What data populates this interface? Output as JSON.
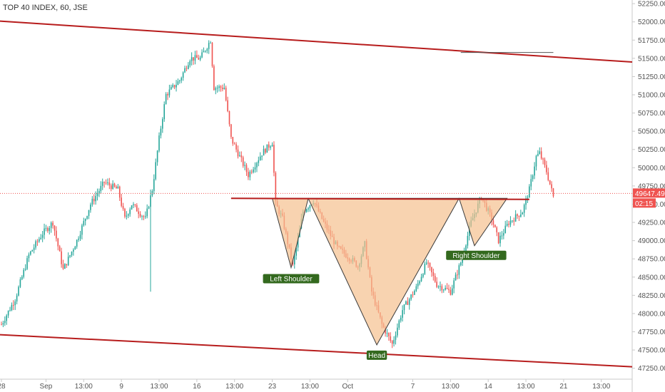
{
  "header": {
    "title": "TOP 40 INDEX, 60, JSE"
  },
  "colors": {
    "up": "#26a69a",
    "down": "#ef5350",
    "trendline": "#b71c1c",
    "pattern_fill": "#f5c08f",
    "label_bg": "#33691e",
    "last_price_bg": "#ef5350",
    "axis": "#555555"
  },
  "chart_data": {
    "type": "candlestick",
    "ylim": [
      47100,
      52300
    ],
    "y_ticks": [
      47250,
      47500,
      47750,
      48000,
      48250,
      48500,
      48750,
      49000,
      49250,
      49500,
      49750,
      50000,
      50250,
      50500,
      50750,
      51000,
      51250,
      51500,
      51750,
      52000,
      52250
    ],
    "y_tick_labels": [
      "47250.00",
      "47500.00",
      "47750.00",
      "48000.00",
      "48250.00",
      "48500.00",
      "48750.00",
      "49000.00",
      "49250.00",
      "49500.00",
      "49750.00",
      "50000.00",
      "50250.00",
      "50500.00",
      "50750.00",
      "51000.00",
      "51250.00",
      "51500.00",
      "51750.00",
      "52000.00",
      "52250.00"
    ],
    "x_ticks": [
      {
        "label": "28",
        "i": 0
      },
      {
        "label": "Sep",
        "i": 13
      },
      {
        "label": "13:00",
        "i": 24
      },
      {
        "label": "9",
        "i": 35
      },
      {
        "label": "13:00",
        "i": 46
      },
      {
        "label": "16",
        "i": 57
      },
      {
        "label": "13:00",
        "i": 68
      },
      {
        "label": "23",
        "i": 79
      },
      {
        "label": "13:00",
        "i": 90
      },
      {
        "label": "Oct",
        "i": 101
      },
      {
        "label": "7",
        "i": 120
      },
      {
        "label": "13:00",
        "i": 131
      },
      {
        "label": "14",
        "i": 142
      },
      {
        "label": "13:00",
        "i": 153
      },
      {
        "label": "21",
        "i": 164
      },
      {
        "label": "13:00",
        "i": 175
      }
    ],
    "x_range": [
      0,
      184
    ],
    "path_points": [
      [
        0,
        47850
      ],
      [
        4,
        48200
      ],
      [
        8,
        48800
      ],
      [
        12,
        49100
      ],
      [
        15,
        49250
      ],
      [
        18,
        48600
      ],
      [
        22,
        49000
      ],
      [
        26,
        49500
      ],
      [
        30,
        49800
      ],
      [
        34,
        49700
      ],
      [
        36,
        49300
      ],
      [
        38,
        49500
      ],
      [
        42,
        49300
      ],
      [
        44,
        49700
      ],
      [
        46,
        50400
      ],
      [
        48,
        51000
      ],
      [
        52,
        51200
      ],
      [
        55,
        51500
      ],
      [
        58,
        51500
      ],
      [
        61,
        51750
      ],
      [
        62,
        51100
      ],
      [
        65,
        51100
      ],
      [
        67,
        50400
      ],
      [
        70,
        50100
      ],
      [
        72,
        49900
      ],
      [
        76,
        50200
      ],
      [
        79,
        50350
      ],
      [
        80,
        49500
      ],
      [
        82,
        49300
      ],
      [
        85,
        48650
      ],
      [
        88,
        49400
      ],
      [
        91,
        49550
      ],
      [
        94,
        49250
      ],
      [
        98,
        48900
      ],
      [
        102,
        48750
      ],
      [
        104,
        48650
      ],
      [
        106,
        48950
      ],
      [
        108,
        48300
      ],
      [
        111,
        47850
      ],
      [
        114,
        47580
      ],
      [
        117,
        48050
      ],
      [
        121,
        48350
      ],
      [
        124,
        48700
      ],
      [
        127,
        48400
      ],
      [
        131,
        48300
      ],
      [
        134,
        48700
      ],
      [
        137,
        49250
      ],
      [
        140,
        49600
      ],
      [
        143,
        49300
      ],
      [
        145,
        49000
      ],
      [
        148,
        49250
      ],
      [
        152,
        49400
      ],
      [
        154,
        49700
      ],
      [
        156,
        50150
      ],
      [
        157,
        50200
      ],
      [
        159,
        49950
      ],
      [
        161,
        49600
      ]
    ],
    "last_price": 49647.49,
    "last_price_label": "49647.49",
    "countdown": "02:15",
    "annotations": [
      "Left Shoulder",
      "Head",
      "Right Shoulder"
    ]
  }
}
